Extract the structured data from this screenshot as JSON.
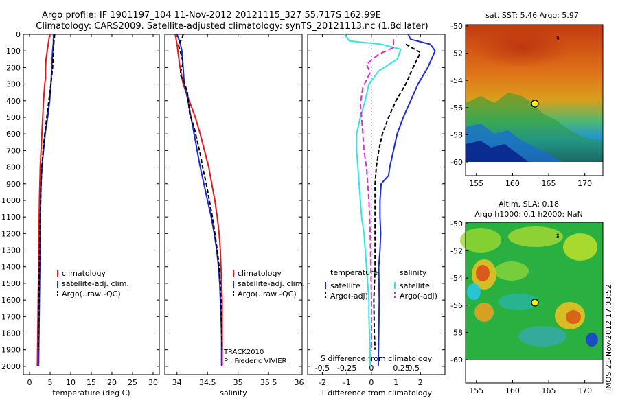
{
  "header": {
    "line1": "Argo profile: IF 1901197_104 11-Nov-2012 20121115_327 55.717S 162.99E",
    "line2": "Climatology: CARS2009. Satellite-adjusted climatology: synTS_20121113.nc (1.8d later)"
  },
  "colors": {
    "climatology": "#e8141a",
    "satellite": "#1a2cd6",
    "argo": "#000000",
    "salinity_sat": "#2fe6e6",
    "salinity_argo": "#e228d8"
  },
  "chart_data": [
    {
      "type": "line",
      "id": "temperature",
      "xlabel": "temperature (deg C)",
      "ylabel": "",
      "xlim": [
        -1.5,
        31.5
      ],
      "ylim": [
        2050,
        0
      ],
      "xticks": [
        0,
        5,
        10,
        15,
        20,
        25,
        30
      ],
      "yticks": [
        0,
        100,
        200,
        300,
        400,
        500,
        600,
        700,
        800,
        900,
        1000,
        1100,
        1200,
        1300,
        1400,
        1500,
        1600,
        1700,
        1800,
        1900,
        2000
      ],
      "legend": [
        "climatology",
        "satellite-adj. clim.",
        "Argo(..raw -QC)"
      ],
      "series": [
        {
          "name": "climatology",
          "color": "#e8141a",
          "dash": "",
          "points": [
            [
              4.9,
              0
            ],
            [
              4.6,
              50
            ],
            [
              4.3,
              100
            ],
            [
              4.0,
              150
            ],
            [
              3.9,
              200
            ],
            [
              3.9,
              260
            ],
            [
              3.7,
              300
            ],
            [
              3.4,
              400
            ],
            [
              3.2,
              500
            ],
            [
              3.0,
              600
            ],
            [
              2.8,
              700
            ],
            [
              2.6,
              800
            ],
            [
              2.5,
              900
            ],
            [
              2.4,
              1000
            ],
            [
              2.3,
              1200
            ],
            [
              2.2,
              1400
            ],
            [
              2.1,
              1600
            ],
            [
              2.0,
              1800
            ],
            [
              1.9,
              2000
            ]
          ]
        },
        {
          "name": "satellite-adj. clim.",
          "color": "#1a2cd6",
          "dash": "",
          "points": [
            [
              5.8,
              0
            ],
            [
              5.8,
              50
            ],
            [
              5.6,
              100
            ],
            [
              5.4,
              200
            ],
            [
              5.2,
              300
            ],
            [
              4.9,
              400
            ],
            [
              4.4,
              500
            ],
            [
              3.8,
              600
            ],
            [
              3.4,
              700
            ],
            [
              3.0,
              800
            ],
            [
              2.8,
              900
            ],
            [
              2.7,
              1000
            ],
            [
              2.6,
              1200
            ],
            [
              2.5,
              1400
            ],
            [
              2.4,
              1600
            ],
            [
              2.3,
              1800
            ],
            [
              2.2,
              2000
            ]
          ]
        },
        {
          "name": "Argo(..raw -QC)",
          "color": "#000000",
          "dash": "6,3",
          "points": [
            [
              6.1,
              0
            ],
            [
              5.9,
              50
            ],
            [
              5.8,
              100
            ],
            [
              5.6,
              200
            ],
            [
              5.2,
              300
            ],
            [
              4.7,
              400
            ],
            [
              4.2,
              500
            ],
            [
              3.7,
              600
            ],
            [
              3.3,
              700
            ],
            [
              3.0,
              800
            ],
            [
              2.8,
              900
            ],
            [
              2.7,
              1000
            ],
            [
              2.5,
              1200
            ],
            [
              2.4,
              1400
            ],
            [
              2.3,
              1600
            ],
            [
              2.2,
              1800
            ],
            [
              2.1,
              1900
            ]
          ]
        }
      ]
    },
    {
      "type": "line",
      "id": "salinity",
      "xlabel": "salinity",
      "xlim": [
        33.8,
        36.05
      ],
      "ylim": [
        2050,
        0
      ],
      "xticks": [
        34,
        34.5,
        35,
        35.5,
        36
      ],
      "legend": [
        "climatology",
        "satellite-adj. clim.",
        "Argo(..raw -QC)"
      ],
      "annotation": [
        "TRACK2010",
        "PI: Frederic VIVIER"
      ],
      "series": [
        {
          "name": "climatology",
          "color": "#e8141a",
          "dash": "",
          "points": [
            [
              33.97,
              0
            ],
            [
              34.0,
              60
            ],
            [
              34.02,
              120
            ],
            [
              34.05,
              200
            ],
            [
              34.1,
              300
            ],
            [
              34.2,
              400
            ],
            [
              34.3,
              500
            ],
            [
              34.38,
              600
            ],
            [
              34.45,
              700
            ],
            [
              34.52,
              800
            ],
            [
              34.57,
              900
            ],
            [
              34.62,
              1000
            ],
            [
              34.66,
              1100
            ],
            [
              34.69,
              1200
            ],
            [
              34.71,
              1300
            ],
            [
              34.72,
              1400
            ],
            [
              34.73,
              1500
            ],
            [
              34.74,
              1600
            ],
            [
              34.74,
              1800
            ],
            [
              34.74,
              2000
            ]
          ]
        },
        {
          "name": "satellite-adj. clim.",
          "color": "#1a2cd6",
          "dash": "",
          "points": [
            [
              34.0,
              0
            ],
            [
              34.05,
              50
            ],
            [
              34.08,
              100
            ],
            [
              34.1,
              200
            ],
            [
              34.12,
              300
            ],
            [
              34.18,
              400
            ],
            [
              34.23,
              500
            ],
            [
              34.28,
              600
            ],
            [
              34.33,
              700
            ],
            [
              34.38,
              800
            ],
            [
              34.44,
              900
            ],
            [
              34.5,
              1000
            ],
            [
              34.56,
              1100
            ],
            [
              34.61,
              1200
            ],
            [
              34.65,
              1300
            ],
            [
              34.68,
              1400
            ],
            [
              34.7,
              1500
            ],
            [
              34.71,
              1600
            ],
            [
              34.72,
              1700
            ],
            [
              34.73,
              1800
            ],
            [
              34.73,
              1900
            ],
            [
              34.73,
              2000
            ]
          ]
        },
        {
          "name": "Argo(..raw -QC)",
          "color": "#000000",
          "dash": "6,3",
          "points": [
            [
              34.1,
              0
            ],
            [
              34.08,
              30
            ],
            [
              34.02,
              60
            ],
            [
              34.06,
              110
            ],
            [
              34.1,
              170
            ],
            [
              34.05,
              240
            ],
            [
              34.12,
              290
            ],
            [
              34.17,
              350
            ],
            [
              34.19,
              420
            ],
            [
              34.21,
              480
            ],
            [
              34.28,
              560
            ],
            [
              34.33,
              640
            ],
            [
              34.38,
              720
            ],
            [
              34.42,
              800
            ],
            [
              34.48,
              900
            ],
            [
              34.53,
              1000
            ],
            [
              34.58,
              1100
            ],
            [
              34.62,
              1200
            ],
            [
              34.66,
              1300
            ],
            [
              34.69,
              1400
            ],
            [
              34.71,
              1500
            ],
            [
              34.72,
              1600
            ],
            [
              34.73,
              1700
            ],
            [
              34.73,
              1800
            ],
            [
              34.74,
              1900
            ]
          ]
        }
      ]
    },
    {
      "type": "line",
      "id": "differences",
      "xlabel": "T difference from climatology",
      "xlabel_top": "S difference from climatology",
      "xlim": [
        -2.6,
        3.0
      ],
      "ylim": [
        2050,
        0
      ],
      "xticks": [
        -2,
        -1,
        0,
        1,
        2
      ],
      "sticks": [
        "-0.5",
        "-0.25",
        "0",
        "0.25",
        "0.5"
      ],
      "legend_temperature": {
        "title": "temperature",
        "items": [
          "satellite",
          "Argo(-adj)"
        ]
      },
      "legend_salinity": {
        "title": "salinity",
        "items": [
          "satellite",
          "Argo(-adj)"
        ]
      },
      "series": [
        {
          "name": "satellite",
          "group": "temperature",
          "color": "#1a2cd6",
          "dash": "",
          "points": [
            [
              1.5,
              0
            ],
            [
              1.6,
              30
            ],
            [
              2.4,
              60
            ],
            [
              2.6,
              100
            ],
            [
              2.3,
              200
            ],
            [
              1.9,
              300
            ],
            [
              1.6,
              400
            ],
            [
              1.3,
              500
            ],
            [
              1.05,
              600
            ],
            [
              0.9,
              700
            ],
            [
              0.75,
              800
            ],
            [
              0.7,
              850
            ],
            [
              0.4,
              900
            ],
            [
              0.35,
              1000
            ],
            [
              0.35,
              1100
            ],
            [
              0.38,
              1200
            ],
            [
              0.35,
              1300
            ],
            [
              0.3,
              1400
            ],
            [
              0.32,
              1600
            ],
            [
              0.3,
              1800
            ],
            [
              0.28,
              2000
            ]
          ]
        },
        {
          "name": "Argo(-adj)",
          "group": "temperature",
          "color": "#000000",
          "dash": "6,3",
          "points": [
            [
              1.4,
              60
            ],
            [
              2.0,
              110
            ],
            [
              1.7,
              200
            ],
            [
              1.4,
              300
            ],
            [
              1.0,
              400
            ],
            [
              0.7,
              500
            ],
            [
              0.45,
              600
            ],
            [
              0.3,
              700
            ],
            [
              0.2,
              800
            ],
            [
              0.15,
              900
            ],
            [
              0.15,
              1000
            ],
            [
              0.15,
              1200
            ],
            [
              0.15,
              1400
            ],
            [
              0.1,
              1600
            ],
            [
              0.12,
              1800
            ],
            [
              0.15,
              1900
            ]
          ]
        },
        {
          "name": "satellite",
          "group": "salinity",
          "color": "#2fe6e6",
          "dash": "",
          "points": [
            [
              -1.1,
              0
            ],
            [
              -0.9,
              40
            ],
            [
              0.4,
              60
            ],
            [
              1.2,
              90
            ],
            [
              1.05,
              150
            ],
            [
              0.3,
              220
            ],
            [
              -0.1,
              300
            ],
            [
              -0.25,
              400
            ],
            [
              -0.45,
              500
            ],
            [
              -0.6,
              600
            ],
            [
              -0.6,
              700
            ],
            [
              -0.55,
              800
            ],
            [
              -0.5,
              900
            ],
            [
              -0.45,
              1000
            ],
            [
              -0.4,
              1100
            ],
            [
              -0.3,
              1200
            ],
            [
              -0.25,
              1300
            ],
            [
              -0.2,
              1400
            ],
            [
              -0.15,
              1500
            ],
            [
              -0.1,
              1600
            ],
            [
              -0.1,
              1700
            ],
            [
              -0.08,
              1800
            ],
            [
              -0.05,
              1900
            ],
            [
              -0.05,
              2000
            ]
          ]
        },
        {
          "name": "Argo(-adj)",
          "group": "salinity",
          "color": "#e228d8",
          "dash": "8,4",
          "points": [
            [
              0.9,
              30
            ],
            [
              0.9,
              80
            ],
            [
              0.3,
              120
            ],
            [
              -0.2,
              180
            ],
            [
              -0.05,
              230
            ],
            [
              -0.35,
              320
            ],
            [
              -0.45,
              420
            ],
            [
              -0.4,
              500
            ],
            [
              -0.35,
              600
            ],
            [
              -0.3,
              700
            ],
            [
              -0.2,
              800
            ],
            [
              -0.15,
              900
            ],
            [
              -0.1,
              1000
            ],
            [
              -0.05,
              1200
            ],
            [
              -0.02,
              1400
            ],
            [
              0.0,
              1600
            ],
            [
              0.0,
              1800
            ],
            [
              0.0,
              1900
            ]
          ]
        }
      ]
    }
  ],
  "maps": {
    "sst": {
      "title": "sat. SST: 5.46 Argo: 5.97",
      "xticks": [
        "155",
        "160",
        "165",
        "170"
      ],
      "yticks": [
        "-50",
        "-52",
        "-54",
        "-56",
        "-58",
        "-60"
      ],
      "profile_lon": 162.99,
      "profile_lat": -55.717
    },
    "sla": {
      "title1": "Altim. SLA: 0.18",
      "title2": "Argo h1000: 0.1 h2000: NaN",
      "xticks": [
        "155",
        "160",
        "165",
        "170"
      ],
      "yticks": [
        "-50",
        "-52",
        "-54",
        "-56",
        "-58",
        "-60"
      ],
      "profile_lon": 162.99,
      "profile_lat": -55.717
    },
    "footer": "IMOS 21-Nov-2012 17:03:52"
  }
}
